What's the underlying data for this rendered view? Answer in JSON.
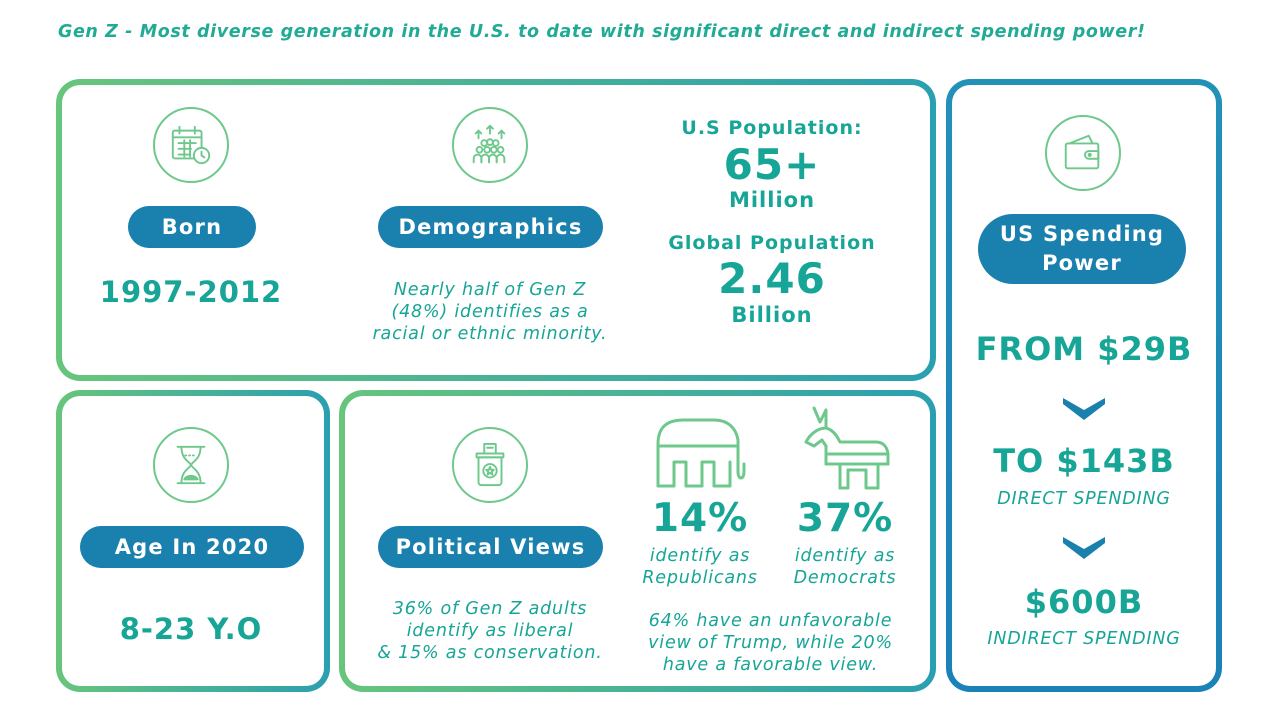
{
  "title": "Gen Z - Most diverse generation in the U.S. to date with significant direct and indirect spending power!",
  "born": {
    "label": "Born",
    "value": "1997-2012",
    "icon": "calendar-clock-icon"
  },
  "demographics": {
    "label": "Demographics",
    "note_line1": "Nearly half of Gen Z",
    "note_line2": "(48%) identifies as a",
    "note_line3": "racial or ethnic minority.",
    "icon": "crowd-icon"
  },
  "population": {
    "us_label": "U.S Population:",
    "us_value": "65+",
    "us_unit": "Million",
    "global_label": "Global Population",
    "global_value": "2.46",
    "global_unit": "Billion"
  },
  "age": {
    "label": "Age In 2020",
    "value": "8-23 Y.O",
    "icon": "hourglass-icon"
  },
  "political": {
    "label": "Political Views",
    "icon": "ballot-box-icon",
    "note_line1": "36% of Gen Z adults",
    "note_line2": "identify as liberal",
    "note_line3": "& 15% as conservation.",
    "rep_pct": "14%",
    "rep_line1": "identify as",
    "rep_line2": "Republicans",
    "dem_pct": "37%",
    "dem_line1": "identify as",
    "dem_line2": "Democrats",
    "trump_line1": "64% have an unfavorable",
    "trump_line2": "view of Trump, while 20%",
    "trump_line3": "have a favorable view."
  },
  "spending": {
    "label_line1": "US Spending",
    "label_line2": "Power",
    "icon": "wallet-icon",
    "from": "FROM $29B",
    "to": "TO $143B",
    "direct": "DIRECT SPENDING",
    "indirect_value": "$600B",
    "indirect": "INDIRECT SPENDING"
  },
  "colors": {
    "teal": "#16a596",
    "pill_blue": "#1a80ae",
    "green": "#67c57c",
    "blue_border": "#1b82b8"
  }
}
